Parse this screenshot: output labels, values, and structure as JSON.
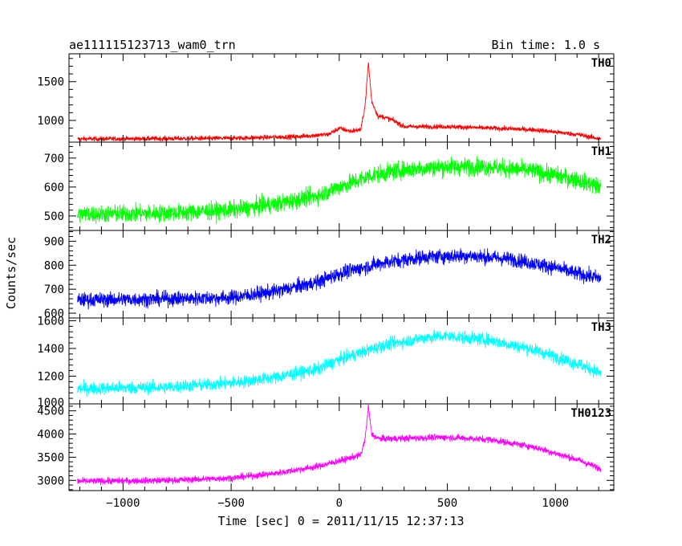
{
  "header": {
    "title": "ae111115123713_wam0_trn",
    "bin_time": "Bin time: 1.0 s"
  },
  "chart_data": {
    "type": "line",
    "xlabel": "Time [sec] 0 = 2011/11/15 12:37:13",
    "ylabel": "Counts/sec",
    "xlim": [
      -1250,
      1270
    ],
    "x_ticks": [
      -1000,
      -500,
      0,
      500,
      1000
    ],
    "x_tick_labels": [
      "−1000",
      "−500",
      "0",
      "500",
      "1000"
    ],
    "x_range_data": [
      -1210,
      1210
    ],
    "panels": [
      {
        "name": "TH0",
        "color": "#ff0000",
        "ylim": [
          720,
          1860
        ],
        "y_ticks": [
          1000,
          1500
        ],
        "y_tick_labels": [
          "1000",
          "1500"
        ],
        "curve": {
          "x": [
            -1210,
            -500,
            -200,
            -50,
            0,
            50,
            100,
            120,
            135,
            150,
            180,
            200,
            250,
            300,
            500,
            700,
            900,
            1100,
            1210
          ],
          "y": [
            760,
            770,
            790,
            820,
            900,
            860,
            880,
            1200,
            1750,
            1250,
            1050,
            1050,
            1000,
            920,
            920,
            900,
            880,
            820,
            760
          ]
        },
        "noise": 30
      },
      {
        "name": "TH1",
        "color": "#00ff00",
        "ylim": [
          450,
          755
        ],
        "y_ticks": [
          500,
          600,
          700
        ],
        "y_tick_labels": [
          "500",
          "600",
          "700"
        ],
        "curve": {
          "x": [
            -1210,
            -800,
            -500,
            -300,
            -100,
            0,
            150,
            300,
            500,
            700,
            900,
            1100,
            1210
          ],
          "y": [
            505,
            510,
            520,
            540,
            570,
            600,
            640,
            660,
            670,
            670,
            655,
            625,
            600
          ]
        },
        "noise": 30
      },
      {
        "name": "TH2",
        "color": "#0000ff",
        "ylim": [
          580,
          945
        ],
        "y_ticks": [
          600,
          700,
          800,
          900
        ],
        "y_tick_labels": [
          "600",
          "700",
          "800",
          "900"
        ],
        "curve": {
          "x": [
            -1210,
            -800,
            -500,
            -300,
            -100,
            0,
            200,
            400,
            600,
            800,
            1000,
            1100,
            1210
          ],
          "y": [
            655,
            660,
            665,
            690,
            730,
            765,
            810,
            835,
            840,
            825,
            790,
            765,
            745
          ]
        },
        "noise": 30
      },
      {
        "name": "TH3",
        "color": "#00ffff",
        "ylim": [
          1000,
          1620
        ],
        "y_ticks": [
          1000,
          1200,
          1400,
          1600
        ],
        "y_tick_labels": [
          "1000",
          "1200",
          "1400",
          "1600"
        ],
        "curve": {
          "x": [
            -1210,
            -800,
            -500,
            -300,
            -100,
            0,
            200,
            400,
            500,
            700,
            900,
            1100,
            1210
          ],
          "y": [
            1110,
            1120,
            1150,
            1190,
            1250,
            1320,
            1420,
            1480,
            1490,
            1460,
            1390,
            1290,
            1220
          ]
        },
        "noise": 45
      },
      {
        "name": "TH0123",
        "color": "#ff00ff",
        "ylim": [
          2780,
          4650
        ],
        "y_ticks": [
          3000,
          3500,
          4000,
          4500
        ],
        "y_tick_labels": [
          "3000",
          "3500",
          "4000",
          "4500"
        ],
        "curve": {
          "x": [
            -1210,
            -800,
            -500,
            -300,
            -100,
            0,
            100,
            120,
            135,
            150,
            180,
            250,
            400,
            500,
            700,
            900,
            1100,
            1210
          ],
          "y": [
            2980,
            3000,
            3050,
            3150,
            3300,
            3420,
            3550,
            3900,
            4600,
            4000,
            3900,
            3900,
            3920,
            3930,
            3880,
            3720,
            3450,
            3250
          ]
        },
        "noise": 70
      }
    ]
  }
}
